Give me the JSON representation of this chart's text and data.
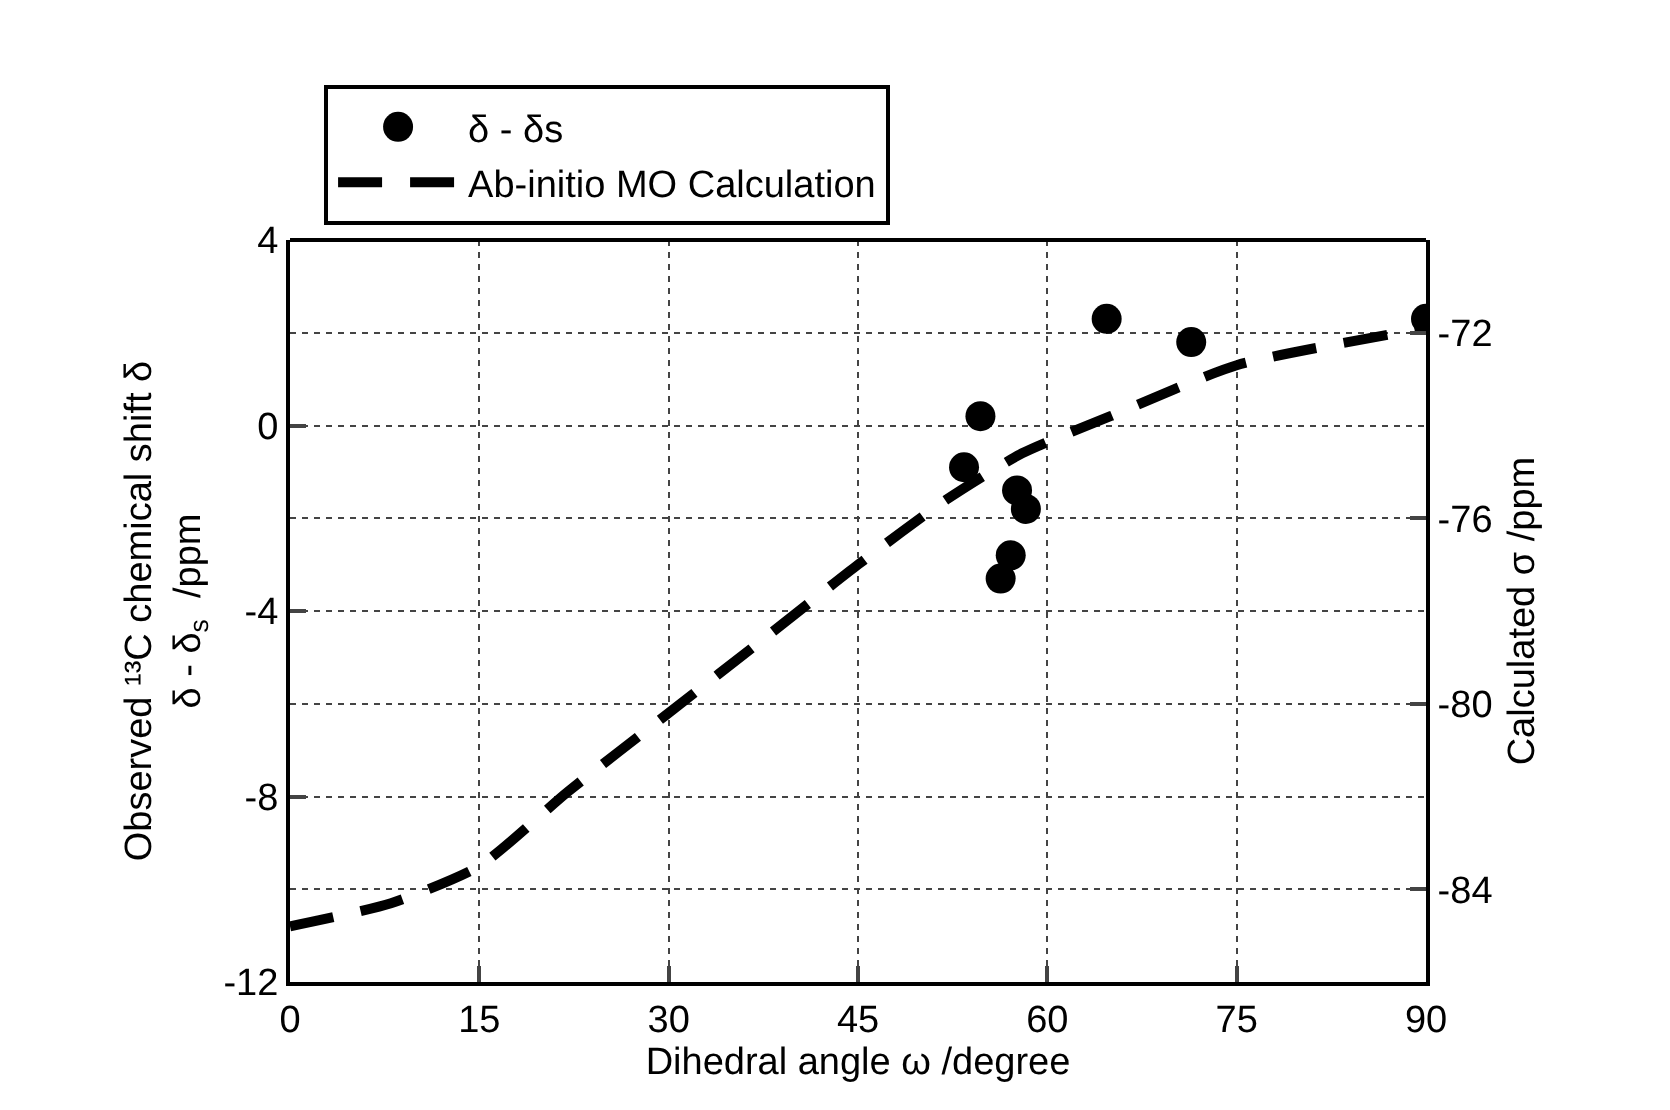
{
  "chart_data": {
    "type": "scatter",
    "xlabel": "Dihedral angle ω /degree",
    "ylabel": "Observed ¹³C chemical shift δ\nδ - δ$_{s}$  /ppm",
    "y2label": "Calculated σ /ppm",
    "xlim": [
      0,
      90
    ],
    "xticks": [
      0,
      15,
      30,
      45,
      60,
      75,
      90
    ],
    "ylim": [
      -12,
      4
    ],
    "yticks": [
      -12,
      -8,
      -4,
      0,
      4
    ],
    "y2lim": [
      -86,
      -70
    ],
    "y2ticks": [
      -84,
      -80,
      -76,
      -72
    ],
    "grid": true,
    "legend": "top left",
    "series": [
      {
        "name": "δ - δs",
        "marker": "circle",
        "color": "#000000",
        "x": [
          53.4,
          54.7,
          56.3,
          57.1,
          57.6,
          58.3,
          64.7,
          71.4,
          90
        ],
        "values": [
          -0.9,
          0.2,
          -3.3,
          -2.8,
          -1.4,
          -1.8,
          2.3,
          1.8,
          2.3
        ]
      },
      {
        "name": "Ab-initio MO Calculation",
        "type": "line",
        "axis": "y2",
        "line_style": "dashed",
        "color": "#000000",
        "x": [
          0,
          8,
          15,
          22,
          30,
          38,
          45,
          52,
          58,
          65,
          75,
          90
        ],
        "values": [
          -84.8,
          -84.3,
          -83.5,
          -81.9,
          -80.2,
          -78.5,
          -77.0,
          -75.6,
          -74.6,
          -73.8,
          -72.7,
          -71.9
        ]
      }
    ]
  }
}
